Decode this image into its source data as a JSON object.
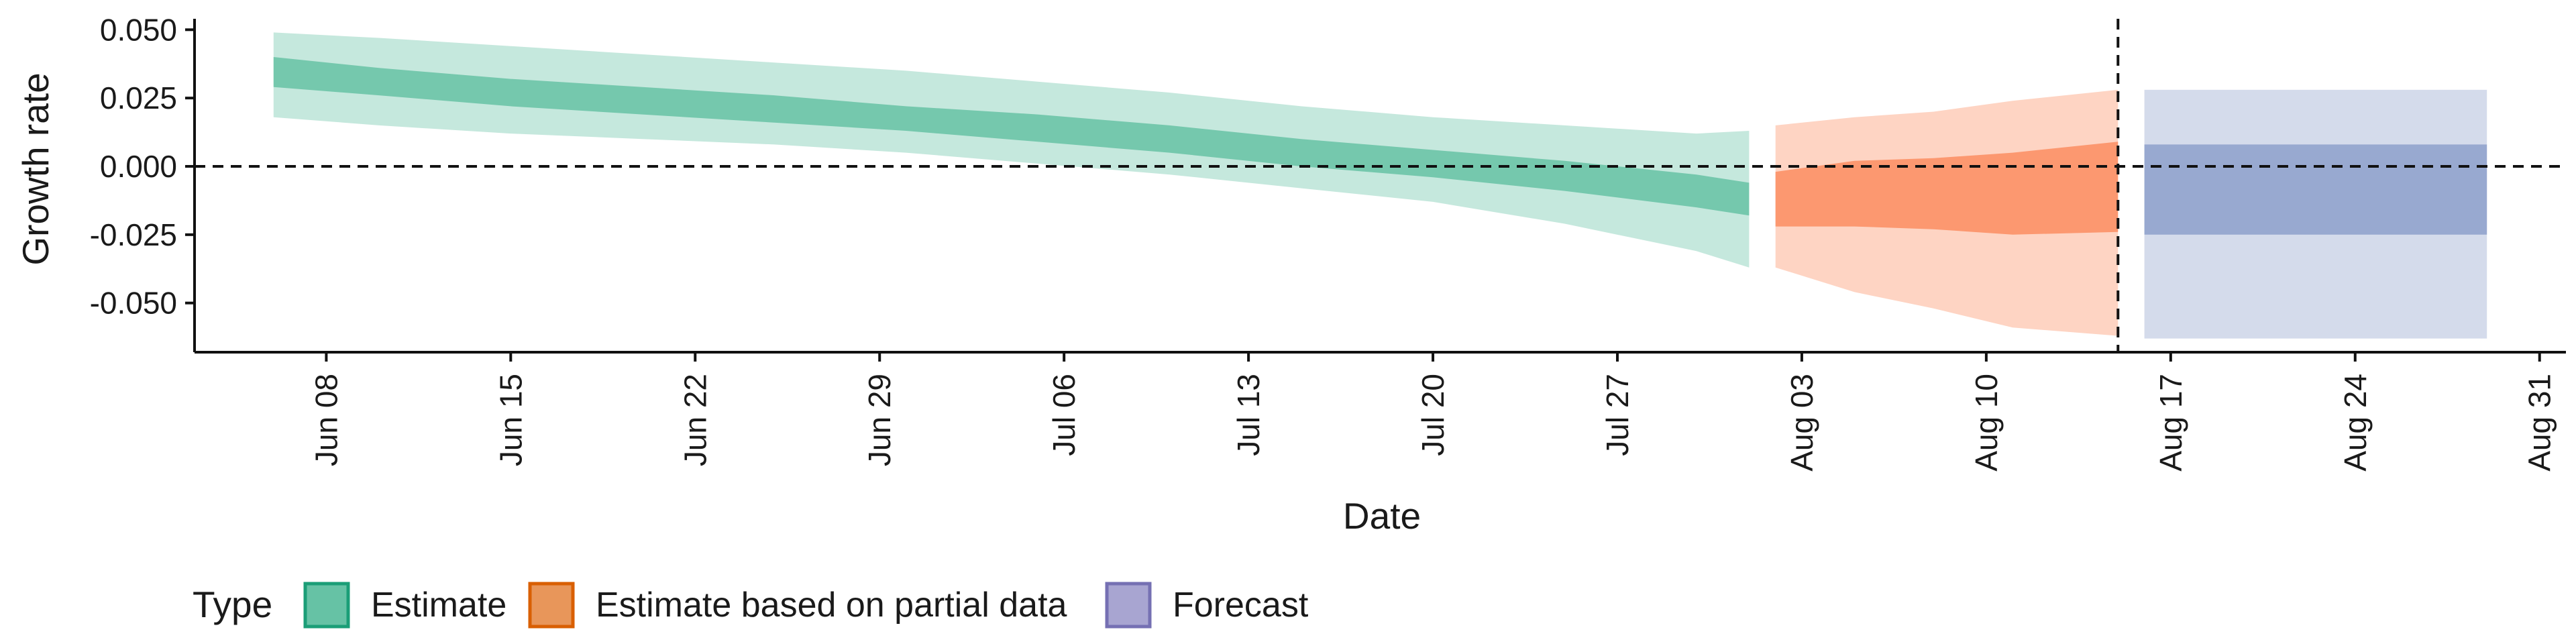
{
  "chart_data": {
    "type": "area",
    "xlabel": "Date",
    "ylabel": "Growth rate",
    "ylim": [
      -0.068,
      0.054
    ],
    "xlim": [
      "2021-06-03",
      "2021-09-01"
    ],
    "y_ticks": [
      {
        "value": 0.05,
        "label": "0.050"
      },
      {
        "value": 0.025,
        "label": "0.025"
      },
      {
        "value": 0.0,
        "label": "0.000"
      },
      {
        "value": -0.025,
        "label": "-0.025"
      },
      {
        "value": -0.05,
        "label": "-0.050"
      }
    ],
    "x_ticks": [
      {
        "date": "2021-06-08",
        "label": "Jun 08"
      },
      {
        "date": "2021-06-15",
        "label": "Jun 15"
      },
      {
        "date": "2021-06-22",
        "label": "Jun 22"
      },
      {
        "date": "2021-06-29",
        "label": "Jun 29"
      },
      {
        "date": "2021-07-06",
        "label": "Jul 06"
      },
      {
        "date": "2021-07-13",
        "label": "Jul 13"
      },
      {
        "date": "2021-07-20",
        "label": "Jul 20"
      },
      {
        "date": "2021-07-27",
        "label": "Jul 27"
      },
      {
        "date": "2021-08-03",
        "label": "Aug 03"
      },
      {
        "date": "2021-08-10",
        "label": "Aug 10"
      },
      {
        "date": "2021-08-17",
        "label": "Aug 17"
      },
      {
        "date": "2021-08-24",
        "label": "Aug 24"
      },
      {
        "date": "2021-08-31",
        "label": "Aug 31"
      }
    ],
    "reference_lines": {
      "horizontal_y": 0.0,
      "vertical_date": "2021-08-15"
    },
    "grid": false,
    "legend": {
      "title": "Type",
      "position": "bottom-left"
    },
    "series": [
      {
        "name": "Estimate",
        "color": "#66c2a5",
        "points": [
          {
            "date": "2021-06-06",
            "outer_lo": 0.018,
            "inner_lo": 0.029,
            "inner_hi": 0.04,
            "outer_hi": 0.049
          },
          {
            "date": "2021-06-10",
            "outer_lo": 0.015,
            "inner_lo": 0.026,
            "inner_hi": 0.036,
            "outer_hi": 0.047
          },
          {
            "date": "2021-06-15",
            "outer_lo": 0.012,
            "inner_lo": 0.022,
            "inner_hi": 0.032,
            "outer_hi": 0.044
          },
          {
            "date": "2021-06-20",
            "outer_lo": 0.01,
            "inner_lo": 0.019,
            "inner_hi": 0.029,
            "outer_hi": 0.041
          },
          {
            "date": "2021-06-25",
            "outer_lo": 0.008,
            "inner_lo": 0.016,
            "inner_hi": 0.026,
            "outer_hi": 0.038
          },
          {
            "date": "2021-06-30",
            "outer_lo": 0.005,
            "inner_lo": 0.013,
            "inner_hi": 0.022,
            "outer_hi": 0.035
          },
          {
            "date": "2021-07-05",
            "outer_lo": 0.001,
            "inner_lo": 0.009,
            "inner_hi": 0.019,
            "outer_hi": 0.031
          },
          {
            "date": "2021-07-10",
            "outer_lo": -0.003,
            "inner_lo": 0.005,
            "inner_hi": 0.015,
            "outer_hi": 0.027
          },
          {
            "date": "2021-07-15",
            "outer_lo": -0.008,
            "inner_lo": 0.0,
            "inner_hi": 0.01,
            "outer_hi": 0.022
          },
          {
            "date": "2021-07-20",
            "outer_lo": -0.013,
            "inner_lo": -0.004,
            "inner_hi": 0.006,
            "outer_hi": 0.018
          },
          {
            "date": "2021-07-25",
            "outer_lo": -0.021,
            "inner_lo": -0.009,
            "inner_hi": 0.002,
            "outer_hi": 0.015
          },
          {
            "date": "2021-07-30",
            "outer_lo": -0.031,
            "inner_lo": -0.015,
            "inner_hi": -0.003,
            "outer_hi": 0.012
          },
          {
            "date": "2021-08-01",
            "outer_lo": -0.037,
            "inner_lo": -0.018,
            "inner_hi": -0.006,
            "outer_hi": 0.013
          }
        ]
      },
      {
        "name": "Estimate based on partial data",
        "color": "#fc8d62",
        "points": [
          {
            "date": "2021-08-02",
            "outer_lo": -0.037,
            "inner_lo": -0.022,
            "inner_hi": -0.002,
            "outer_hi": 0.015
          },
          {
            "date": "2021-08-05",
            "outer_lo": -0.046,
            "inner_lo": -0.022,
            "inner_hi": 0.002,
            "outer_hi": 0.018
          },
          {
            "date": "2021-08-08",
            "outer_lo": -0.052,
            "inner_lo": -0.023,
            "inner_hi": 0.003,
            "outer_hi": 0.02
          },
          {
            "date": "2021-08-11",
            "outer_lo": -0.059,
            "inner_lo": -0.025,
            "inner_hi": 0.005,
            "outer_hi": 0.024
          },
          {
            "date": "2021-08-15",
            "outer_lo": -0.062,
            "inner_lo": -0.024,
            "inner_hi": 0.009,
            "outer_hi": 0.028
          }
        ]
      },
      {
        "name": "Forecast",
        "color": "#8da0cb",
        "points": [
          {
            "date": "2021-08-16",
            "outer_lo": -0.063,
            "inner_lo": -0.025,
            "inner_hi": 0.008,
            "outer_hi": 0.028
          },
          {
            "date": "2021-08-29",
            "outer_lo": -0.063,
            "inner_lo": -0.025,
            "inner_hi": 0.008,
            "outer_hi": 0.028
          }
        ]
      }
    ]
  },
  "legend_items": [
    {
      "label": "Estimate",
      "fill": "#66c2a5",
      "stroke": "#1b9e77"
    },
    {
      "label": "Estimate based on partial data",
      "fill": "#e8965a",
      "stroke": "#d95f02"
    },
    {
      "label": "Forecast",
      "fill": "#a8a5d1",
      "stroke": "#7570b3"
    }
  ]
}
